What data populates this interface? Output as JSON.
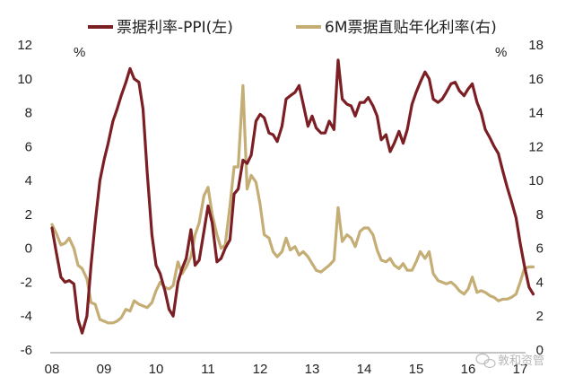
{
  "chart_data": {
    "type": "line",
    "x_ticks": [
      "08",
      "09",
      "10",
      "11",
      "12",
      "13",
      "14",
      "15",
      "16",
      "17"
    ],
    "y_left": {
      "ticks": [
        -6,
        -4,
        -2,
        0,
        2,
        4,
        6,
        8,
        10,
        12
      ],
      "unit": "%",
      "ylim": [
        -6,
        12
      ]
    },
    "y_right": {
      "ticks": [
        0,
        2,
        4,
        6,
        8,
        10,
        12,
        14,
        16,
        18
      ],
      "unit": "%",
      "ylim": [
        0,
        18
      ]
    },
    "grid": false,
    "legend_position": "top",
    "series": [
      {
        "name": "票据利率-PPI(左)",
        "axis": "left",
        "color": "#7b1f24",
        "points": [
          [
            2008.0,
            1.2
          ],
          [
            2008.08,
            -0.2
          ],
          [
            2008.17,
            -1.7
          ],
          [
            2008.25,
            -2.0
          ],
          [
            2008.33,
            -1.9
          ],
          [
            2008.42,
            -2.1
          ],
          [
            2008.5,
            -4.2
          ],
          [
            2008.58,
            -5.0
          ],
          [
            2008.67,
            -4.0
          ],
          [
            2008.75,
            -1.0
          ],
          [
            2008.83,
            1.5
          ],
          [
            2008.92,
            4.0
          ],
          [
            2009.0,
            5.2
          ],
          [
            2009.08,
            6.2
          ],
          [
            2009.17,
            7.5
          ],
          [
            2009.25,
            8.2
          ],
          [
            2009.33,
            9.0
          ],
          [
            2009.42,
            9.8
          ],
          [
            2009.5,
            10.6
          ],
          [
            2009.58,
            10.0
          ],
          [
            2009.67,
            9.8
          ],
          [
            2009.75,
            8.2
          ],
          [
            2009.83,
            4.5
          ],
          [
            2009.92,
            0.8
          ],
          [
            2010.0,
            -1.0
          ],
          [
            2010.08,
            -1.5
          ],
          [
            2010.17,
            -2.5
          ],
          [
            2010.25,
            -3.6
          ],
          [
            2010.33,
            -4.0
          ],
          [
            2010.42,
            -2.0
          ],
          [
            2010.5,
            -1.2
          ],
          [
            2010.58,
            -0.6
          ],
          [
            2010.67,
            1.1
          ],
          [
            2010.75,
            -1.0
          ],
          [
            2010.83,
            -0.7
          ],
          [
            2010.92,
            1.0
          ],
          [
            2011.0,
            2.5
          ],
          [
            2011.08,
            1.5
          ],
          [
            2011.17,
            -0.8
          ],
          [
            2011.25,
            -0.6
          ],
          [
            2011.33,
            0.0
          ],
          [
            2011.42,
            0.5
          ],
          [
            2011.5,
            3.2
          ],
          [
            2011.58,
            3.5
          ],
          [
            2011.67,
            5.2
          ],
          [
            2011.75,
            5.0
          ],
          [
            2011.83,
            5.5
          ],
          [
            2011.92,
            7.5
          ],
          [
            2012.0,
            7.9
          ],
          [
            2012.08,
            7.7
          ],
          [
            2012.17,
            6.8
          ],
          [
            2012.25,
            6.7
          ],
          [
            2012.33,
            6.3
          ],
          [
            2012.42,
            7.2
          ],
          [
            2012.5,
            8.8
          ],
          [
            2012.58,
            9.0
          ],
          [
            2012.67,
            9.2
          ],
          [
            2012.75,
            9.6
          ],
          [
            2012.83,
            8.5
          ],
          [
            2012.92,
            7.2
          ],
          [
            2013.0,
            7.8
          ],
          [
            2013.08,
            7.1
          ],
          [
            2013.17,
            6.8
          ],
          [
            2013.25,
            6.8
          ],
          [
            2013.33,
            7.5
          ],
          [
            2013.42,
            7.0
          ],
          [
            2013.5,
            11.1
          ],
          [
            2013.58,
            8.8
          ],
          [
            2013.67,
            8.5
          ],
          [
            2013.75,
            8.4
          ],
          [
            2013.83,
            7.8
          ],
          [
            2013.92,
            8.6
          ],
          [
            2014.0,
            8.6
          ],
          [
            2014.08,
            8.9
          ],
          [
            2014.17,
            8.4
          ],
          [
            2014.25,
            7.8
          ],
          [
            2014.33,
            6.4
          ],
          [
            2014.42,
            6.7
          ],
          [
            2014.5,
            5.7
          ],
          [
            2014.58,
            6.2
          ],
          [
            2014.67,
            6.9
          ],
          [
            2014.75,
            6.2
          ],
          [
            2014.83,
            7.0
          ],
          [
            2014.92,
            8.5
          ],
          [
            2015.0,
            9.2
          ],
          [
            2015.08,
            9.8
          ],
          [
            2015.17,
            10.4
          ],
          [
            2015.25,
            10.0
          ],
          [
            2015.33,
            8.8
          ],
          [
            2015.42,
            8.6
          ],
          [
            2015.5,
            8.8
          ],
          [
            2015.58,
            9.2
          ],
          [
            2015.67,
            9.7
          ],
          [
            2015.75,
            9.8
          ],
          [
            2015.83,
            9.3
          ],
          [
            2015.92,
            9.0
          ],
          [
            2016.0,
            9.4
          ],
          [
            2016.08,
            9.7
          ],
          [
            2016.17,
            8.6
          ],
          [
            2016.25,
            8.0
          ],
          [
            2016.33,
            7.0
          ],
          [
            2016.42,
            6.5
          ],
          [
            2016.5,
            6.0
          ],
          [
            2016.58,
            5.6
          ],
          [
            2016.67,
            4.5
          ],
          [
            2016.75,
            3.6
          ],
          [
            2016.83,
            2.8
          ],
          [
            2016.92,
            1.8
          ],
          [
            2017.0,
            0.3
          ],
          [
            2017.08,
            -1.0
          ],
          [
            2017.17,
            -2.3
          ],
          [
            2017.25,
            -2.7
          ]
        ]
      },
      {
        "name": "6M票据直贴年化利率(右)",
        "axis": "right",
        "color": "#c5ad76",
        "points": [
          [
            2008.0,
            7.4
          ],
          [
            2008.08,
            6.9
          ],
          [
            2008.17,
            6.2
          ],
          [
            2008.25,
            6.3
          ],
          [
            2008.33,
            6.6
          ],
          [
            2008.42,
            6.0
          ],
          [
            2008.5,
            5.0
          ],
          [
            2008.58,
            4.8
          ],
          [
            2008.67,
            4.2
          ],
          [
            2008.75,
            2.8
          ],
          [
            2008.83,
            2.7
          ],
          [
            2008.92,
            1.8
          ],
          [
            2009.0,
            1.7
          ],
          [
            2009.08,
            1.6
          ],
          [
            2009.17,
            1.6
          ],
          [
            2009.25,
            1.7
          ],
          [
            2009.33,
            1.9
          ],
          [
            2009.42,
            2.4
          ],
          [
            2009.5,
            2.3
          ],
          [
            2009.58,
            2.9
          ],
          [
            2009.67,
            2.7
          ],
          [
            2009.75,
            2.6
          ],
          [
            2009.83,
            2.5
          ],
          [
            2009.92,
            2.8
          ],
          [
            2010.0,
            3.5
          ],
          [
            2010.08,
            4.0
          ],
          [
            2010.17,
            3.7
          ],
          [
            2010.25,
            3.6
          ],
          [
            2010.33,
            3.8
          ],
          [
            2010.42,
            5.2
          ],
          [
            2010.5,
            4.5
          ],
          [
            2010.58,
            4.9
          ],
          [
            2010.67,
            5.5
          ],
          [
            2010.75,
            6.8
          ],
          [
            2010.83,
            7.5
          ],
          [
            2010.92,
            9.1
          ],
          [
            2011.0,
            9.6
          ],
          [
            2011.08,
            8.0
          ],
          [
            2011.17,
            6.8
          ],
          [
            2011.25,
            6.0
          ],
          [
            2011.33,
            6.2
          ],
          [
            2011.42,
            8.5
          ],
          [
            2011.5,
            10.8
          ],
          [
            2011.58,
            10.8
          ],
          [
            2011.67,
            15.6
          ],
          [
            2011.75,
            9.5
          ],
          [
            2011.83,
            10.3
          ],
          [
            2011.92,
            9.9
          ],
          [
            2012.0,
            8.6
          ],
          [
            2012.08,
            6.8
          ],
          [
            2012.17,
            6.6
          ],
          [
            2012.25,
            5.8
          ],
          [
            2012.33,
            5.5
          ],
          [
            2012.42,
            5.8
          ],
          [
            2012.5,
            6.6
          ],
          [
            2012.58,
            5.9
          ],
          [
            2012.67,
            6.1
          ],
          [
            2012.75,
            5.6
          ],
          [
            2012.83,
            5.8
          ],
          [
            2012.92,
            5.5
          ],
          [
            2013.0,
            5.1
          ],
          [
            2013.08,
            4.7
          ],
          [
            2013.17,
            4.6
          ],
          [
            2013.25,
            4.8
          ],
          [
            2013.33,
            5.0
          ],
          [
            2013.42,
            5.3
          ],
          [
            2013.5,
            8.4
          ],
          [
            2013.58,
            6.4
          ],
          [
            2013.67,
            6.8
          ],
          [
            2013.75,
            6.6
          ],
          [
            2013.83,
            6.1
          ],
          [
            2013.92,
            7.0
          ],
          [
            2014.0,
            7.2
          ],
          [
            2014.08,
            7.2
          ],
          [
            2014.17,
            6.8
          ],
          [
            2014.25,
            5.9
          ],
          [
            2014.33,
            5.3
          ],
          [
            2014.42,
            5.2
          ],
          [
            2014.5,
            5.4
          ],
          [
            2014.58,
            5.0
          ],
          [
            2014.67,
            4.8
          ],
          [
            2014.75,
            5.1
          ],
          [
            2014.83,
            4.7
          ],
          [
            2014.92,
            4.7
          ],
          [
            2015.0,
            5.2
          ],
          [
            2015.08,
            5.8
          ],
          [
            2015.17,
            5.4
          ],
          [
            2015.25,
            5.8
          ],
          [
            2015.33,
            4.5
          ],
          [
            2015.42,
            4.1
          ],
          [
            2015.5,
            4.0
          ],
          [
            2015.58,
            3.9
          ],
          [
            2015.67,
            4.0
          ],
          [
            2015.75,
            3.8
          ],
          [
            2015.83,
            3.5
          ],
          [
            2015.92,
            3.3
          ],
          [
            2016.0,
            3.6
          ],
          [
            2016.08,
            4.3
          ],
          [
            2016.17,
            3.4
          ],
          [
            2016.25,
            3.5
          ],
          [
            2016.33,
            3.4
          ],
          [
            2016.42,
            3.2
          ],
          [
            2016.5,
            3.1
          ],
          [
            2016.58,
            2.9
          ],
          [
            2016.67,
            3.0
          ],
          [
            2016.75,
            3.0
          ],
          [
            2016.83,
            3.1
          ],
          [
            2016.92,
            3.3
          ],
          [
            2017.0,
            4.0
          ],
          [
            2017.08,
            4.8
          ],
          [
            2017.17,
            4.9
          ],
          [
            2017.25,
            4.9
          ]
        ]
      }
    ]
  },
  "watermark": {
    "text": "敦和资管",
    "icon": "wechat-icon"
  }
}
